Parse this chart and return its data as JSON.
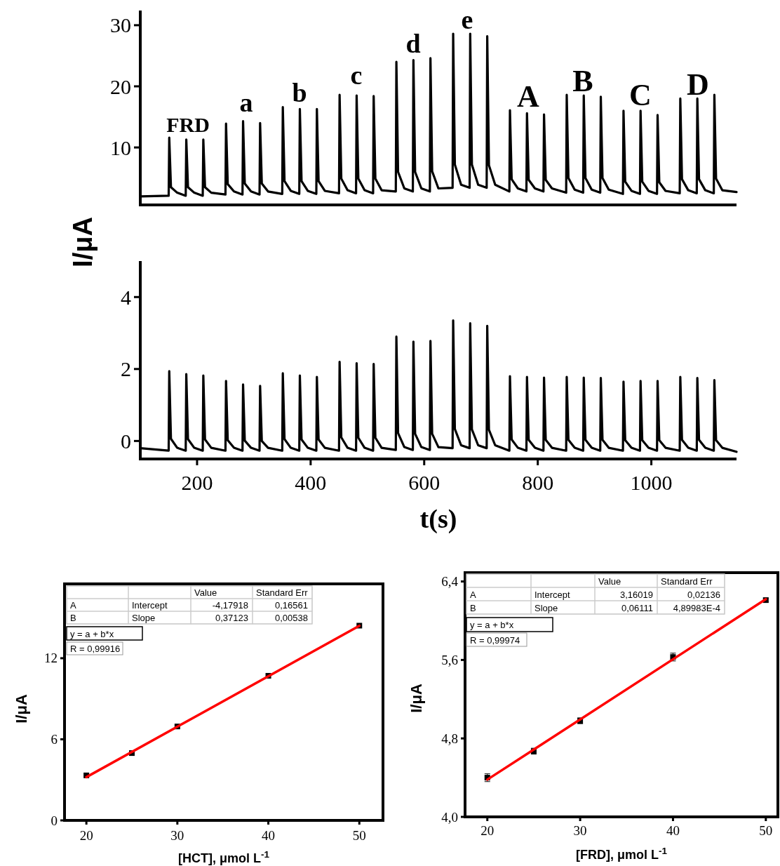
{
  "chart_data": [
    {
      "type": "line",
      "color": "#000000",
      "ylabel": "I/μA",
      "xlim": [
        100,
        1150
      ],
      "ylim": [
        0.6,
        32.4
      ],
      "yticks": [
        10,
        20,
        30
      ],
      "tick_labels": "y",
      "annotations": [
        "FRD",
        "a",
        "b",
        "c",
        "d",
        "e",
        "A",
        "B",
        "C",
        "D"
      ],
      "x": [
        100,
        150,
        151,
        154,
        165,
        180,
        181,
        184,
        195,
        210,
        211,
        214,
        225,
        250,
        251,
        254,
        265,
        280,
        281,
        284,
        295,
        310,
        311,
        314,
        325,
        350,
        351,
        354,
        365,
        380,
        381,
        384,
        395,
        410,
        411,
        414,
        425,
        450,
        451,
        454,
        465,
        480,
        481,
        484,
        495,
        510,
        511,
        514,
        525,
        550,
        551,
        554,
        565,
        580,
        581,
        584,
        595,
        610,
        611,
        614,
        625,
        650,
        651,
        654,
        665,
        680,
        681,
        684,
        695,
        710,
        711,
        714,
        725,
        750,
        751,
        754,
        765,
        780,
        781,
        784,
        795,
        810,
        811,
        814,
        825,
        850,
        851,
        854,
        865,
        880,
        881,
        884,
        895,
        910,
        911,
        914,
        925,
        950,
        951,
        954,
        965,
        980,
        981,
        984,
        995,
        1010,
        1011,
        1014,
        1025,
        1050,
        1051,
        1054,
        1065,
        1080,
        1081,
        1084,
        1095,
        1110,
        1111,
        1114,
        1125,
        1150
      ],
      "values": [
        2.0,
        2.1,
        11.6,
        3.5,
        2.6,
        2.1,
        11.3,
        3.5,
        2.6,
        2.1,
        11.3,
        3.5,
        2.6,
        2.3,
        13.9,
        4.0,
        2.8,
        2.3,
        14.3,
        4.1,
        2.8,
        2.3,
        14.0,
        4.1,
        2.8,
        2.4,
        16.6,
        4.5,
        2.9,
        2.4,
        16.3,
        4.5,
        2.9,
        2.4,
        16.3,
        4.5,
        2.9,
        2.5,
        18.6,
        4.9,
        3.0,
        2.5,
        18.5,
        4.9,
        3.0,
        2.5,
        18.4,
        4.9,
        3.0,
        2.8,
        24.0,
        6.0,
        3.3,
        2.8,
        24.3,
        6.0,
        3.3,
        2.8,
        24.6,
        6.1,
        3.3,
        3.4,
        28.6,
        7.2,
        3.9,
        3.4,
        28.6,
        7.2,
        3.9,
        3.4,
        28.2,
        7.1,
        3.9,
        2.8,
        16.1,
        4.8,
        3.3,
        2.8,
        15.6,
        4.7,
        3.3,
        2.8,
        15.4,
        4.7,
        3.3,
        2.6,
        18.6,
        5.0,
        3.1,
        2.6,
        18.5,
        5.0,
        3.1,
        2.6,
        18.3,
        5.0,
        3.1,
        2.4,
        16.0,
        4.4,
        2.9,
        2.4,
        16.0,
        4.4,
        2.9,
        2.4,
        15.3,
        4.3,
        2.9,
        2.5,
        18.0,
        4.8,
        3.0,
        2.5,
        18.0,
        4.8,
        3.0,
        2.5,
        18.6,
        4.9,
        3.0,
        2.7
      ]
    },
    {
      "type": "line",
      "color": "#000000",
      "xlabel": "t(s)",
      "xlim": [
        100,
        1150
      ],
      "xticks": [
        200,
        400,
        600,
        800,
        1000
      ],
      "ylim": [
        -0.5,
        5
      ],
      "yticks": [
        0,
        2,
        4
      ],
      "x": [
        100,
        150,
        151,
        154,
        165,
        180,
        181,
        184,
        195,
        210,
        211,
        214,
        225,
        250,
        251,
        254,
        265,
        280,
        281,
        284,
        295,
        310,
        311,
        314,
        325,
        350,
        351,
        354,
        365,
        380,
        381,
        384,
        395,
        410,
        411,
        414,
        425,
        450,
        451,
        454,
        465,
        480,
        481,
        484,
        495,
        510,
        511,
        514,
        525,
        550,
        551,
        554,
        565,
        580,
        581,
        584,
        595,
        610,
        611,
        614,
        625,
        650,
        651,
        654,
        665,
        680,
        681,
        684,
        695,
        710,
        711,
        714,
        725,
        750,
        751,
        754,
        765,
        780,
        781,
        784,
        795,
        810,
        811,
        814,
        825,
        850,
        851,
        854,
        865,
        880,
        881,
        884,
        895,
        910,
        911,
        914,
        925,
        950,
        951,
        954,
        965,
        980,
        981,
        984,
        995,
        1010,
        1011,
        1014,
        1025,
        1050,
        1051,
        1054,
        1065,
        1080,
        1081,
        1084,
        1095,
        1110,
        1111,
        1114,
        1125,
        1150
      ],
      "values": [
        -0.2,
        -0.27,
        1.94,
        0.06,
        -0.19,
        -0.27,
        1.86,
        0.05,
        -0.19,
        -0.27,
        1.82,
        0.04,
        -0.19,
        -0.27,
        1.67,
        0.02,
        -0.19,
        -0.27,
        1.57,
        0.01,
        -0.19,
        -0.27,
        1.53,
        0.0,
        -0.19,
        -0.27,
        1.88,
        0.05,
        -0.19,
        -0.27,
        1.82,
        0.04,
        -0.19,
        -0.27,
        1.78,
        0.04,
        -0.19,
        -0.27,
        2.2,
        0.1,
        -0.19,
        -0.27,
        2.16,
        0.09,
        -0.19,
        -0.27,
        2.14,
        0.09,
        -0.19,
        -0.25,
        2.9,
        0.22,
        -0.17,
        -0.25,
        2.76,
        0.2,
        -0.17,
        -0.25,
        2.78,
        0.2,
        -0.17,
        -0.2,
        3.35,
        0.33,
        -0.12,
        -0.2,
        3.27,
        0.32,
        -0.12,
        -0.2,
        3.2,
        0.31,
        -0.12,
        -0.27,
        1.8,
        0.04,
        -0.19,
        -0.27,
        1.78,
        0.03,
        -0.19,
        -0.27,
        1.76,
        0.03,
        -0.19,
        -0.27,
        1.78,
        0.03,
        -0.19,
        -0.27,
        1.76,
        0.03,
        -0.19,
        -0.27,
        1.75,
        0.03,
        -0.19,
        -0.27,
        1.65,
        0.02,
        -0.19,
        -0.27,
        1.67,
        0.02,
        -0.19,
        -0.27,
        1.67,
        0.02,
        -0.19,
        -0.27,
        1.78,
        0.03,
        -0.19,
        -0.27,
        1.75,
        0.03,
        -0.19,
        -0.27,
        1.69,
        0.02,
        -0.19,
        -0.3
      ]
    },
    {
      "type": "scatter",
      "xlabel": "[HCT], μmol L$^{-1}$",
      "ylabel": "I/μA",
      "xlim": [
        17.6,
        52.6
      ],
      "xticks": [
        20,
        30,
        40,
        50
      ],
      "ylim": [
        0,
        17.5
      ],
      "yticks": [
        0,
        6,
        12
      ],
      "annotations": [
        "Value",
        "Standard Err",
        "A",
        "Intercept",
        "-4,17918",
        "0,16561",
        "B",
        "Slope",
        "0,37123",
        "0,00538",
        "y = a + b*x",
        "R = 0,99916"
      ],
      "series": [
        {
          "color": "#000000",
          "marker": "square",
          "x": [
            20,
            25,
            30,
            40,
            50
          ],
          "values": [
            3.33,
            4.98,
            6.95,
            10.7,
            14.41
          ]
        },
        {
          "type": "line",
          "color": "#ff0000",
          "x": [
            20,
            50
          ],
          "values": [
            3.2,
            14.4
          ]
        }
      ]
    },
    {
      "type": "scatter",
      "xlabel": "[FRD], μmol L$^{-1}$",
      "ylabel": "I/μA",
      "xlim": [
        17.6,
        51.3
      ],
      "xticks": [
        20,
        30,
        40,
        50
      ],
      "ylim": [
        4.0,
        6.49
      ],
      "yticks": [
        {
          "value": 4,
          "label": "4,0"
        },
        {
          "value": 4.8,
          "label": "4,8"
        },
        {
          "value": 5.6,
          "label": "5,6"
        },
        {
          "value": 6.4,
          "label": "6,4"
        }
      ],
      "annotations": [
        "Value",
        "Standard Err",
        "A",
        "Intercept",
        "3,16019",
        "0,02136",
        "B",
        "Slope",
        "0,06111",
        "4,89983E-4",
        "y = a + b*x",
        "R = 0,99974"
      ],
      "series": [
        {
          "color": "#000000",
          "marker": "square",
          "x": [
            20,
            25,
            30,
            40,
            50
          ],
          "values": [
            4.4,
            4.67,
            4.98,
            5.63,
            6.21
          ],
          "errors": [
            0.04,
            0.03,
            0.03,
            0.04,
            0.02
          ]
        },
        {
          "type": "line",
          "color": "#ff0000",
          "x": [
            20,
            50
          ],
          "values": [
            4.38,
            6.22
          ]
        }
      ]
    }
  ]
}
